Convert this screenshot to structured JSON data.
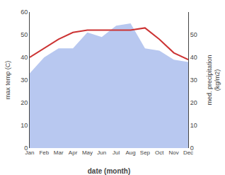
{
  "chart_data": {
    "type": "line",
    "xlabel": "date (month)",
    "ylabel": "max temp (C)",
    "y2label": "med. precipitation\n(kg/m2)",
    "categories": [
      "Jan",
      "Feb",
      "Mar",
      "Apr",
      "May",
      "Jun",
      "Jul",
      "Aug",
      "Sep",
      "Oct",
      "Nov",
      "Dec"
    ],
    "series": [
      {
        "type": "area",
        "color": "#b8c8f0",
        "values": [
          33,
          40,
          44,
          44,
          51,
          49,
          54,
          55,
          44,
          43,
          39,
          38
        ]
      },
      {
        "type": "line",
        "color": "#cc3333",
        "axis": "y2",
        "values": [
          40,
          44,
          48,
          51,
          52,
          52,
          52,
          52,
          53,
          48,
          42,
          39
        ]
      }
    ],
    "ylim": [
      0,
      60
    ],
    "yticks": [
      0,
      10,
      20,
      30,
      40,
      50,
      60
    ],
    "y2lim": [
      0,
      60
    ],
    "y2ticks": [
      0,
      10,
      20,
      30,
      40,
      50
    ],
    "grid": false
  }
}
